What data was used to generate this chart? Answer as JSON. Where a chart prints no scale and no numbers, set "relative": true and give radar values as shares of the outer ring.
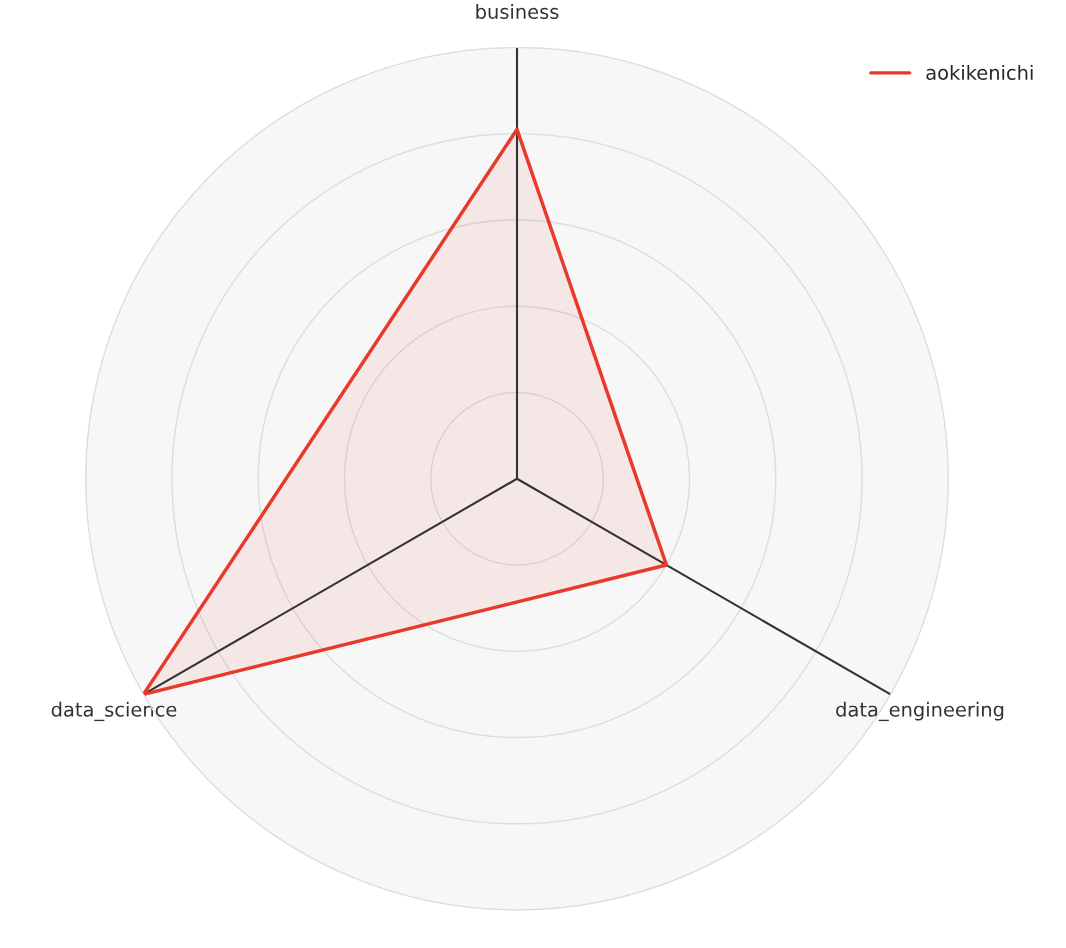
{
  "chart_data": {
    "type": "radar",
    "relative": true,
    "categories": [
      "business",
      "data_engineering",
      "data_science"
    ],
    "series": [
      {
        "name": "aokikenichi",
        "color": "#e8392b",
        "values": [
          0.81,
          0.4,
          1.0
        ]
      }
    ],
    "grid": true,
    "legend": "top right"
  }
}
